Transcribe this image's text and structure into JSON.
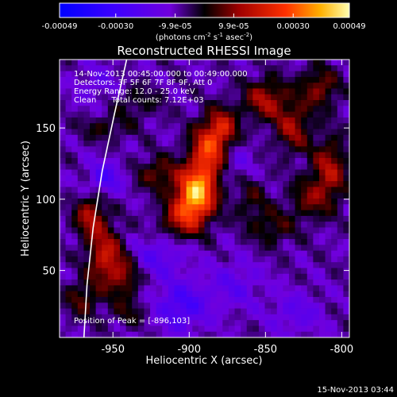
{
  "chart_data": {
    "type": "heatmap",
    "title": "Reconstructed RHESSI Image",
    "xlabel": "Heliocentric X (arcsec)",
    "ylabel": "Heliocentric Y (arcsec)",
    "xlim": [
      -985,
      -795
    ],
    "ylim": [
      3,
      198
    ],
    "xticks": [
      -950,
      -900,
      -850,
      -800
    ],
    "yticks": [
      50,
      100,
      150
    ],
    "colorbar": {
      "range": [
        -0.00049,
        0.00049
      ],
      "tick_labels": [
        "-0.00049",
        "-0.00030",
        "-9.9e-05",
        "9.9e-05",
        "0.00030",
        "0.00049"
      ],
      "unit_text": "(photons cm",
      "unit_sup1": "-2",
      "unit_mid": " s",
      "unit_sup2": "-1",
      "unit_mid2": " asec",
      "unit_sup3": "-2",
      "unit_end": ")"
    },
    "info_lines": [
      "14-Nov-2013 00:45:00.000 to 00:49:00.000",
      "Detectors: 3F 5F 6F 7F 8F 9F, Att 0",
      "Energy Range: 12.0 - 25.0 keV",
      "Clean      Total counts: 7.12E+03"
    ],
    "peak_label": "Position of Peak = [-896,103]",
    "peak": {
      "x": -896,
      "y": 103,
      "value": 0.00049
    },
    "sources": [
      {
        "x": -896,
        "y": 103,
        "amp": 0.00049,
        "sx": 9,
        "sy": 12
      },
      {
        "x": -888,
        "y": 132,
        "amp": 0.00034,
        "sx": 8,
        "sy": 14
      },
      {
        "x": -878,
        "y": 150,
        "amp": 0.00024,
        "sx": 7,
        "sy": 10
      },
      {
        "x": -905,
        "y": 85,
        "amp": 0.0002,
        "sx": 10,
        "sy": 9
      },
      {
        "x": -920,
        "y": 118,
        "amp": 0.00016,
        "sx": 10,
        "sy": 8
      },
      {
        "x": -955,
        "y": 150,
        "amp": 0.0001,
        "sx": 12,
        "sy": 6
      },
      {
        "x": -935,
        "y": 168,
        "amp": 9e-05,
        "sx": 12,
        "sy": 8
      },
      {
        "x": -850,
        "y": 170,
        "amp": 0.00022,
        "sx": 10,
        "sy": 10
      },
      {
        "x": -832,
        "y": 150,
        "amp": 0.0002,
        "sx": 8,
        "sy": 12
      },
      {
        "x": -815,
        "y": 178,
        "amp": 0.00018,
        "sx": 9,
        "sy": 10
      },
      {
        "x": -808,
        "y": 120,
        "amp": 0.00022,
        "sx": 8,
        "sy": 16
      },
      {
        "x": -822,
        "y": 100,
        "amp": 0.00014,
        "sx": 9,
        "sy": 10
      },
      {
        "x": -845,
        "y": 80,
        "amp": 0.00012,
        "sx": 10,
        "sy": 9
      },
      {
        "x": -860,
        "y": 100,
        "amp": 0.0001,
        "sx": 8,
        "sy": 12
      },
      {
        "x": -965,
        "y": 88,
        "amp": 0.00022,
        "sx": 7,
        "sy": 10
      },
      {
        "x": -955,
        "y": 60,
        "amp": 0.00026,
        "sx": 8,
        "sy": 14
      },
      {
        "x": -942,
        "y": 45,
        "amp": 0.00016,
        "sx": 7,
        "sy": 10
      },
      {
        "x": -970,
        "y": 30,
        "amp": 0.00014,
        "sx": 8,
        "sy": 9
      },
      {
        "x": -940,
        "y": 20,
        "amp": 9e-05,
        "sx": 9,
        "sy": 7
      },
      {
        "x": -920,
        "y": 60,
        "amp": -0.00012,
        "sx": 12,
        "sy": 10
      },
      {
        "x": -905,
        "y": 25,
        "amp": -0.00018,
        "sx": 12,
        "sy": 12
      },
      {
        "x": -870,
        "y": 40,
        "amp": -0.0001,
        "sx": 12,
        "sy": 12
      },
      {
        "x": -830,
        "y": 20,
        "amp": -0.0001,
        "sx": 12,
        "sy": 10
      },
      {
        "x": -955,
        "y": 115,
        "amp": -0.00016,
        "sx": 8,
        "sy": 8
      },
      {
        "x": -960,
        "y": 180,
        "amp": -8e-05,
        "sx": 10,
        "sy": 10
      },
      {
        "x": -870,
        "y": 125,
        "amp": -8e-05,
        "sx": 8,
        "sy": 10
      }
    ],
    "limb_curve": [
      {
        "x": -969,
        "y": 3
      },
      {
        "x": -967,
        "y": 40
      },
      {
        "x": -963,
        "y": 80
      },
      {
        "x": -957,
        "y": 120
      },
      {
        "x": -949,
        "y": 160
      },
      {
        "x": -941,
        "y": 198
      }
    ],
    "colors": {
      "background": "#000000",
      "text": "#ffffff",
      "limb": "#ffffff"
    }
  },
  "footer": {
    "timestamp": "15-Nov-2013 03:44"
  }
}
